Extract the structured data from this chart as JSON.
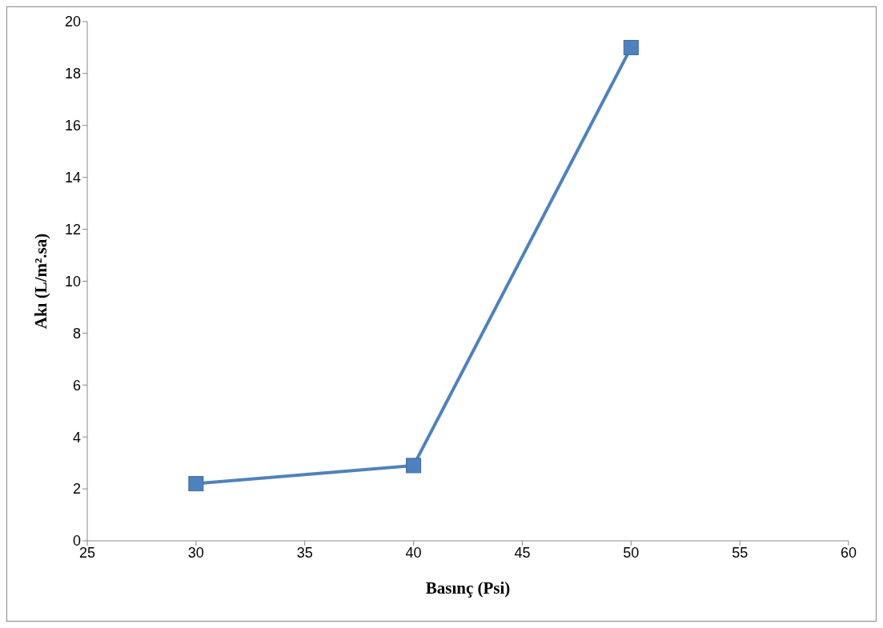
{
  "chart_data": {
    "type": "line",
    "xlabel": "Basınç (Psi)",
    "ylabel": "Akı (L/m².sa)",
    "x": [
      30,
      40,
      50
    ],
    "series": [
      {
        "color": "#4f81bd",
        "values": [
          2.2,
          2.9,
          19
        ]
      }
    ],
    "xlim": [
      25,
      60
    ],
    "xticks": [
      25,
      30,
      35,
      40,
      45,
      50,
      55,
      60
    ],
    "ylim": [
      0,
      20
    ],
    "yticks": [
      0,
      2,
      4,
      6,
      8,
      10,
      12,
      14,
      16,
      18,
      20
    ],
    "marker": "square",
    "line_style": "solid",
    "grid": false,
    "legend": false
  }
}
